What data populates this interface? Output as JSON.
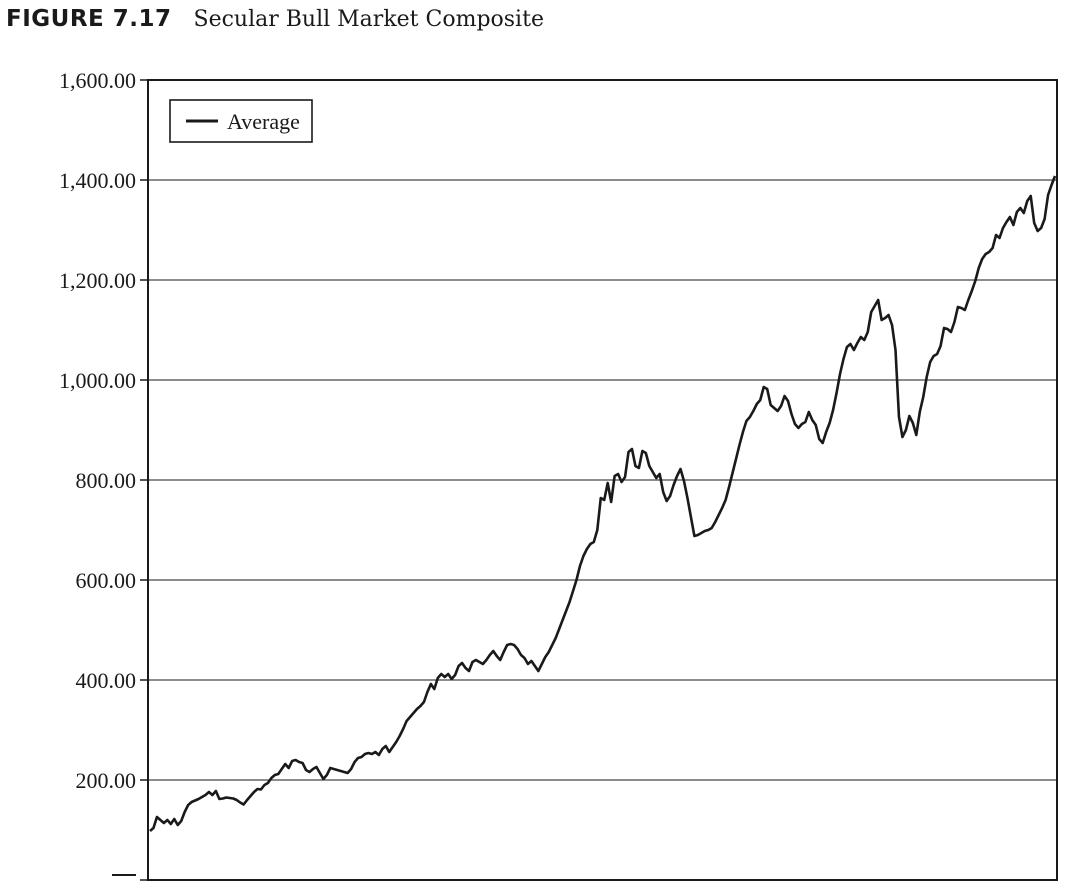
{
  "figure": {
    "label": "FIGURE 7.17",
    "caption": "Secular Bull Market Composite"
  },
  "chart_data": {
    "type": "line",
    "title": "Secular Bull Market Composite",
    "xlabel": "",
    "ylabel": "",
    "ylim": [
      0,
      1600
    ],
    "yticks": [
      "",
      "200.00",
      "400.00",
      "600.00",
      "800.00",
      "1,000.00",
      "1,200.00",
      "1,400.00",
      "1,600.00"
    ],
    "grid": true,
    "legend_position": "top-left",
    "line_color": "#1a1a1a",
    "series": [
      {
        "name": "Average",
        "values": [
          98,
          104,
          126,
          120,
          114,
          120,
          112,
          122,
          110,
          118,
          136,
          150,
          156,
          159,
          162,
          166,
          170,
          176,
          170,
          178,
          162,
          163,
          165,
          164,
          163,
          160,
          155,
          151,
          160,
          168,
          176,
          182,
          181,
          190,
          194,
          204,
          210,
          212,
          222,
          232,
          224,
          238,
          240,
          236,
          234,
          220,
          216,
          222,
          226,
          214,
          202,
          210,
          224,
          222,
          220,
          218,
          216,
          214,
          222,
          236,
          244,
          246,
          252,
          254,
          252,
          256,
          250,
          262,
          268,
          256,
          266,
          276,
          288,
          302,
          318,
          326,
          334,
          342,
          348,
          356,
          376,
          392,
          382,
          404,
          412,
          406,
          412,
          402,
          410,
          428,
          434,
          424,
          418,
          436,
          440,
          436,
          432,
          440,
          450,
          458,
          448,
          440,
          456,
          470,
          472,
          470,
          462,
          450,
          444,
          432,
          438,
          428,
          418,
          432,
          446,
          456,
          470,
          484,
          502,
          520,
          538,
          556,
          578,
          600,
          628,
          648,
          662,
          672,
          676,
          700,
          764,
          760,
          794,
          756,
          808,
          812,
          796,
          806,
          856,
          862,
          828,
          824,
          858,
          854,
          828,
          816,
          804,
          812,
          776,
          758,
          768,
          790,
          808,
          822,
          798,
          764,
          726,
          688,
          690,
          694,
          698,
          700,
          704,
          716,
          730,
          744,
          760,
          786,
          814,
          842,
          870,
          896,
          918,
          926,
          938,
          952,
          960,
          986,
          982,
          950,
          944,
          938,
          948,
          968,
          958,
          932,
          912,
          904,
          912,
          916,
          936,
          920,
          910,
          882,
          874,
          896,
          914,
          940,
          974,
          1012,
          1042,
          1066,
          1072,
          1060,
          1074,
          1086,
          1080,
          1096,
          1136,
          1148,
          1160,
          1120,
          1124,
          1130,
          1110,
          1060,
          926,
          886,
          900,
          928,
          914,
          890,
          936,
          966,
          1006,
          1036,
          1048,
          1052,
          1068,
          1104,
          1102,
          1096,
          1116,
          1146,
          1144,
          1140,
          1160,
          1178,
          1198,
          1224,
          1242,
          1252,
          1256,
          1264,
          1290,
          1284,
          1304,
          1316,
          1326,
          1310,
          1336,
          1344,
          1334,
          1358,
          1368,
          1314,
          1298,
          1304,
          1322,
          1370,
          1390,
          1408
        ]
      }
    ]
  }
}
